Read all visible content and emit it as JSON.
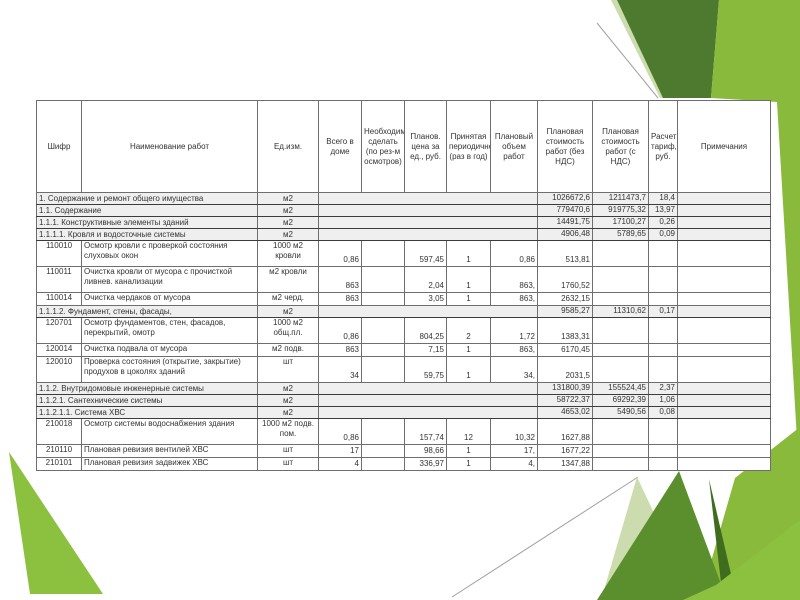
{
  "decor": {
    "colors": {
      "bright_green": "#8aba3c",
      "leaf_green": "#8cc140",
      "medium_green": "#5b8f2d",
      "dark_green": "#4d7a2f",
      "seam_green": "#3f6c1d",
      "pale_green": "#ccdcae",
      "line_gray": "#a0a0a0"
    }
  },
  "table": {
    "colors": {
      "section_bg": "#efefef",
      "border": "#6e6e6e",
      "border_dark": "#3c3c3c",
      "text": "#333333"
    },
    "columns": [
      "Шифр",
      "Наименование работ",
      "Ед.изм.",
      "Всего в доме",
      "Необходимо сделать (по рез-м осмотров)",
      "Планов. цена за ед., руб.",
      "Принятая периодичность (раз в год)",
      "Плановый объем работ",
      "Плановая стоимость работ (без НДС)",
      "Плановая стоимость работ (с НДС)",
      "Расчетный тариф, руб.",
      "Примечания"
    ],
    "rows": [
      {
        "type": "section",
        "name": "1. Содержание и ремонт общего имущества",
        "unit": "м2",
        "cost_no_vat": "1026672,6",
        "cost_vat": "1211473,7",
        "tariff": "18,4",
        "note": ""
      },
      {
        "type": "section",
        "name": "1.1. Содержание",
        "unit": "м2",
        "cost_no_vat": "779470,6",
        "cost_vat": "919775,32",
        "tariff": "13,97",
        "note": ""
      },
      {
        "type": "section",
        "name": "1.1.1. Конструктивные элементы зданий",
        "unit": "м2",
        "cost_no_vat": "14491,75",
        "cost_vat": "17100,27",
        "tariff": "0,26",
        "note": ""
      },
      {
        "type": "section",
        "name": "1.1.1.1. Кровля и водосточные системы",
        "unit": "м2",
        "cost_no_vat": "4906,48",
        "cost_vat": "5789,65",
        "tariff": "0,09",
        "note": ""
      },
      {
        "type": "item",
        "lines": 2,
        "code": "110010",
        "name": "Осмотр кровли с проверкой состояния слуховых окон",
        "unit": "1000 м2 кровли",
        "total": "0,86",
        "need": "",
        "price": "597,45",
        "period": "1",
        "volume": "0,86",
        "cost_no_vat": "513,81",
        "cost_vat": "",
        "tariff": "",
        "note": ""
      },
      {
        "type": "item",
        "lines": 2,
        "code": "110011",
        "name": "Очистка кровли от мусора с прочисткой ливнев. канализации",
        "unit": "м2 кровли",
        "total": "863",
        "need": "",
        "price": "2,04",
        "period": "1",
        "volume": "863,",
        "cost_no_vat": "1760,52",
        "cost_vat": "",
        "tariff": "",
        "note": ""
      },
      {
        "type": "item",
        "lines": 1,
        "code": "110014",
        "name": "Очистка чердаков от мусора",
        "unit": "м2 черд.",
        "total": "863",
        "need": "",
        "price": "3,05",
        "period": "1",
        "volume": "863,",
        "cost_no_vat": "2632,15",
        "cost_vat": "",
        "tariff": "",
        "note": ""
      },
      {
        "type": "section",
        "name": "1.1.1.2. Фундамент, стены, фасады,",
        "unit": "м2",
        "cost_no_vat": "9585,27",
        "cost_vat": "11310,62",
        "tariff": "0,17",
        "note": ""
      },
      {
        "type": "item",
        "lines": 2,
        "code": "120701",
        "name": "Осмотр фундаментов, стен, фасадов, перекрытий, омотр",
        "unit": "1000 м2 общ.пл.",
        "total": "0,86",
        "need": "",
        "price": "804,25",
        "period": "2",
        "volume": "1,72",
        "cost_no_vat": "1383,31",
        "cost_vat": "",
        "tariff": "",
        "note": ""
      },
      {
        "type": "item",
        "lines": 1,
        "code": "120014",
        "name": "Очистка подвала от мусора",
        "unit": "м2 подв.",
        "total": "863",
        "need": "",
        "price": "7,15",
        "period": "1",
        "volume": "863,",
        "cost_no_vat": "6170,45",
        "cost_vat": "",
        "tariff": "",
        "note": ""
      },
      {
        "type": "item",
        "lines": 2,
        "code": "120010",
        "name": "Проверка состояния (открытие, закрытие) продухов в цоколях зданий",
        "unit": "шт",
        "total": "34",
        "need": "",
        "price": "59,75",
        "period": "1",
        "volume": "34,",
        "cost_no_vat": "2031,5",
        "cost_vat": "",
        "tariff": "",
        "note": ""
      },
      {
        "type": "section",
        "name": "1.1.2. Внутридомовые инженерные системы",
        "unit": "м2",
        "cost_no_vat": "131800,39",
        "cost_vat": "155524,45",
        "tariff": "2,37",
        "note": ""
      },
      {
        "type": "section",
        "name": "1.1.2.1. Сантехнические системы",
        "unit": "м2",
        "cost_no_vat": "58722,37",
        "cost_vat": "69292,39",
        "tariff": "1,06",
        "note": ""
      },
      {
        "type": "section",
        "name": "1.1.2.1.1. Система ХВС",
        "unit": "м2",
        "cost_no_vat": "4653,02",
        "cost_vat": "5490,56",
        "tariff": "0,08",
        "note": ""
      },
      {
        "type": "item",
        "lines": 2,
        "code": "210018",
        "name": "Осмотр системы водоснабжения здания",
        "unit": "1000 м2 подв. пом.",
        "total": "0,86",
        "need": "",
        "price": "157,74",
        "period": "12",
        "volume": "10,32",
        "cost_no_vat": "1627,88",
        "cost_vat": "",
        "tariff": "",
        "note": ""
      },
      {
        "type": "item",
        "lines": 1,
        "code": "210110",
        "name": "Плановая ревизия вентилей ХВС",
        "unit": "шт",
        "total": "17",
        "need": "",
        "price": "98,66",
        "period": "1",
        "volume": "17,",
        "cost_no_vat": "1677,22",
        "cost_vat": "",
        "tariff": "",
        "note": ""
      },
      {
        "type": "item",
        "lines": 1,
        "code": "210101",
        "name": "Плановая ревизия задвижек ХВС",
        "unit": "шт",
        "total": "4",
        "need": "",
        "price": "336,97",
        "period": "1",
        "volume": "4,",
        "cost_no_vat": "1347,88",
        "cost_vat": "",
        "tariff": "",
        "note": ""
      }
    ]
  }
}
